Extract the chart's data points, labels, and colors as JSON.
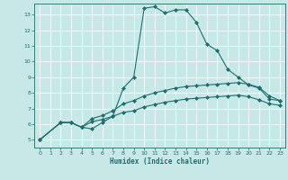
{
  "title": "",
  "xlabel": "Humidex (Indice chaleur)",
  "bg_color": "#c8e8e8",
  "grid_color": "#ffffff",
  "line_color": "#1e6e6e",
  "xlim": [
    -0.5,
    23.5
  ],
  "ylim": [
    4.5,
    13.7
  ],
  "xticks": [
    0,
    1,
    2,
    3,
    4,
    5,
    6,
    7,
    8,
    9,
    10,
    11,
    12,
    13,
    14,
    15,
    16,
    17,
    18,
    19,
    20,
    21,
    22,
    23
  ],
  "yticks": [
    5,
    6,
    7,
    8,
    9,
    10,
    11,
    12,
    13
  ],
  "curve1_x": [
    0,
    2,
    3,
    4,
    5,
    6,
    7,
    8,
    9,
    10,
    11,
    12,
    13,
    14,
    15,
    16,
    17,
    18,
    19,
    20,
    21,
    22,
    23
  ],
  "curve1_y": [
    5.0,
    6.1,
    6.1,
    5.8,
    5.7,
    6.1,
    6.5,
    8.3,
    9.0,
    13.4,
    13.5,
    13.1,
    13.3,
    13.3,
    12.5,
    11.1,
    10.7,
    9.5,
    9.0,
    8.5,
    8.3,
    7.6,
    7.5
  ],
  "curve2_x": [
    0,
    2,
    3,
    4,
    5,
    6,
    7,
    8,
    9,
    10,
    11,
    12,
    13,
    14,
    15,
    16,
    17,
    18,
    19,
    20,
    21,
    22,
    23
  ],
  "curve2_y": [
    5.0,
    6.1,
    6.1,
    5.8,
    6.35,
    6.55,
    6.85,
    7.3,
    7.5,
    7.8,
    8.0,
    8.15,
    8.3,
    8.4,
    8.45,
    8.5,
    8.55,
    8.6,
    8.65,
    8.55,
    8.35,
    7.8,
    7.5
  ],
  "curve3_x": [
    0,
    2,
    3,
    4,
    5,
    6,
    7,
    8,
    9,
    10,
    11,
    12,
    13,
    14,
    15,
    16,
    17,
    18,
    19,
    20,
    21,
    22,
    23
  ],
  "curve3_y": [
    5.0,
    6.1,
    6.1,
    5.8,
    6.15,
    6.3,
    6.5,
    6.75,
    6.85,
    7.1,
    7.25,
    7.4,
    7.5,
    7.6,
    7.65,
    7.7,
    7.75,
    7.8,
    7.85,
    7.75,
    7.55,
    7.3,
    7.2
  ]
}
